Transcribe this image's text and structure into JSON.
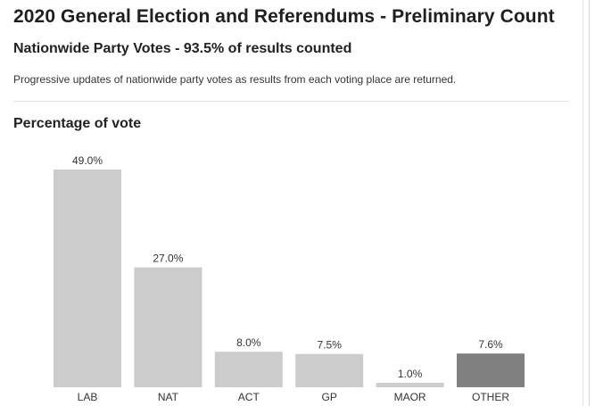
{
  "header": {
    "title": "2020 General Election and Referendums - Preliminary Count",
    "subtitle": "Nationwide Party Votes - 93.5% of results counted",
    "description": "Progressive updates of nationwide party votes as results from each voting place are returned."
  },
  "chart_data": {
    "type": "bar",
    "title": "Percentage of vote",
    "categories": [
      "LAB",
      "NAT",
      "ACT",
      "GP",
      "MAOR",
      "OTHER"
    ],
    "values": [
      49.0,
      27.0,
      8.0,
      7.5,
      1.0,
      7.6
    ],
    "value_labels": [
      "49.0%",
      "27.0%",
      "8.0%",
      "7.5%",
      "1.0%",
      "7.6%"
    ],
    "xlabel": "",
    "ylabel": "",
    "grid": false,
    "colors": {
      "default_bar": "#cccccc",
      "highlight_bar": "#808080"
    },
    "bar_colors": [
      "#cccccc",
      "#cccccc",
      "#cccccc",
      "#cccccc",
      "#cccccc",
      "#808080"
    ]
  }
}
